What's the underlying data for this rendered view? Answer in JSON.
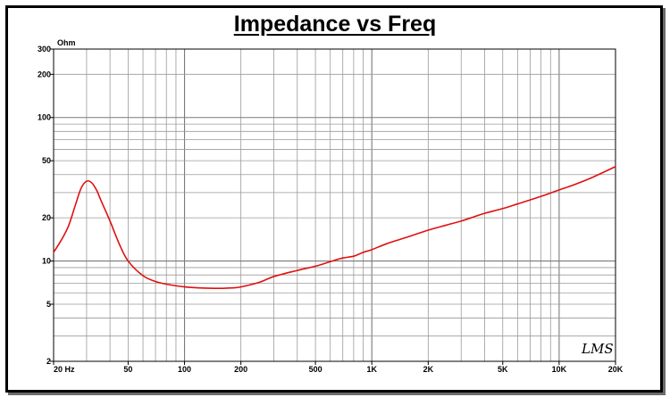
{
  "chart_data": {
    "type": "line",
    "title": "Impedance vs Freq",
    "ylabel": "Ohm",
    "xlabel": "",
    "x_scale": "log",
    "y_scale": "log",
    "xlim": [
      20,
      20000
    ],
    "ylim": [
      2,
      300
    ],
    "grid": true,
    "x_tick_labels": [
      {
        "value": 20,
        "label": "20  Hz"
      },
      {
        "value": 50,
        "label": "50"
      },
      {
        "value": 100,
        "label": "100"
      },
      {
        "value": 200,
        "label": "200"
      },
      {
        "value": 500,
        "label": "500"
      },
      {
        "value": 1000,
        "label": "1K"
      },
      {
        "value": 2000,
        "label": "2K"
      },
      {
        "value": 5000,
        "label": "5K"
      },
      {
        "value": 10000,
        "label": "10K"
      },
      {
        "value": 20000,
        "label": "20K"
      }
    ],
    "y_tick_labels": [
      {
        "value": 2,
        "label": "2"
      },
      {
        "value": 5,
        "label": "5"
      },
      {
        "value": 10,
        "label": "10"
      },
      {
        "value": 20,
        "label": "20"
      },
      {
        "value": 50,
        "label": "50"
      },
      {
        "value": 100,
        "label": "100"
      },
      {
        "value": 200,
        "label": "200"
      },
      {
        "value": 300,
        "label": "300"
      }
    ],
    "signature": "LMS",
    "series": [
      {
        "color": "#e01010",
        "x": [
          20,
          22,
          24,
          26,
          28,
          30,
          32,
          34,
          36,
          40,
          45,
          50,
          60,
          70,
          80,
          100,
          120,
          150,
          180,
          200,
          250,
          300,
          400,
          500,
          600,
          700,
          800,
          900,
          1000,
          1200,
          1500,
          2000,
          2500,
          3000,
          3500,
          4000,
          5000,
          6000,
          8000,
          10000,
          12000,
          15000,
          20000
        ],
        "y": [
          11.5,
          14,
          17.5,
          24,
          32,
          36,
          35,
          31,
          26,
          19,
          13,
          10,
          7.9,
          7.2,
          6.9,
          6.6,
          6.5,
          6.45,
          6.5,
          6.6,
          7.1,
          7.8,
          8.6,
          9.2,
          9.9,
          10.5,
          10.8,
          11.5,
          12,
          13.2,
          14.5,
          16.4,
          17.8,
          19,
          20.3,
          21.5,
          23.2,
          25,
          28.2,
          31.3,
          34,
          38.2,
          45.5
        ]
      }
    ]
  }
}
